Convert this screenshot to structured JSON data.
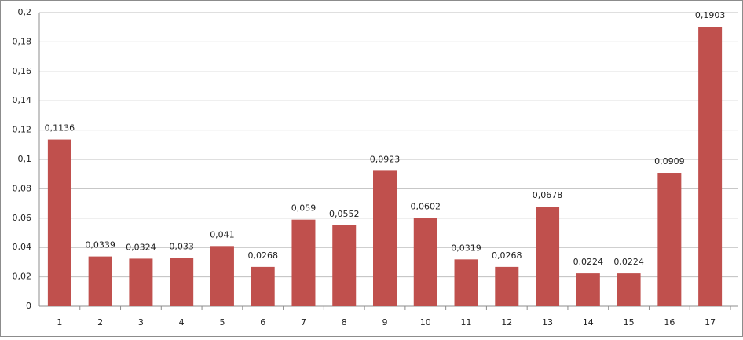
{
  "chart_data": {
    "type": "bar",
    "categories": [
      "1",
      "2",
      "3",
      "4",
      "5",
      "6",
      "7",
      "8",
      "9",
      "10",
      "11",
      "12",
      "13",
      "14",
      "15",
      "16",
      "17"
    ],
    "values": [
      0.1136,
      0.0339,
      0.0324,
      0.033,
      0.041,
      0.0268,
      0.059,
      0.0552,
      0.0923,
      0.0602,
      0.0319,
      0.0268,
      0.0678,
      0.0224,
      0.0224,
      0.0909,
      0.1903
    ],
    "value_labels": [
      "0,1136",
      "0,0339",
      "0,0324",
      "0,033",
      "0,041",
      "0,0268",
      "0,059",
      "0,0552",
      "0,0923",
      "0,0602",
      "0,0319",
      "0,0268",
      "0,0678",
      "0,0224",
      "0,0224",
      "0,0909",
      "0,1903"
    ],
    "color": "#c0504d",
    "ylim": [
      0,
      0.2
    ],
    "yticks": [
      0,
      {
        "value": 0.02,
        "label": "0,02"
      },
      {
        "value": 0.04,
        "label": "0,04"
      },
      {
        "value": 0.06,
        "label": "0,06"
      },
      {
        "value": 0.08,
        "label": "0,08"
      },
      {
        "value": 0.1,
        "label": "0,1"
      },
      {
        "value": 0.12,
        "label": "0,12"
      },
      {
        "value": 0.14,
        "label": "0,14"
      },
      {
        "value": 0.16,
        "label": "0,16"
      },
      {
        "value": 0.18,
        "label": "0,18"
      },
      {
        "value": 0.2,
        "label": "0,2"
      }
    ],
    "grid": true
  }
}
